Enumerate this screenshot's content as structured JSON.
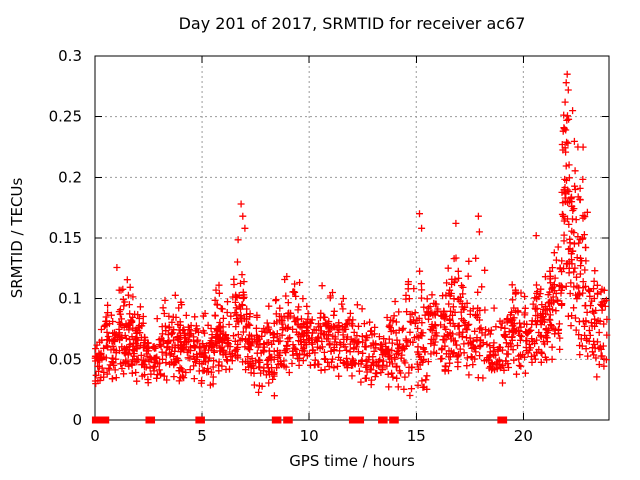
{
  "chart_data": {
    "type": "scatter",
    "title": "Day 201 of 2017, SRMTID for receiver ac67",
    "xlabel": "GPS time / hours",
    "ylabel": "SRMTID / TECUs",
    "series_name": "SRMTID",
    "xlim": [
      0,
      24
    ],
    "ylim": [
      0,
      0.3
    ],
    "xticks": [
      {
        "v": 0,
        "label": "0"
      },
      {
        "v": 5,
        "label": "5"
      },
      {
        "v": 10,
        "label": "10"
      },
      {
        "v": 15,
        "label": "15"
      },
      {
        "v": 20,
        "label": "20"
      }
    ],
    "yticks": [
      {
        "v": 0,
        "label": "0"
      },
      {
        "v": 0.05,
        "label": "0.05"
      },
      {
        "v": 0.1,
        "label": "0.1"
      },
      {
        "v": 0.15,
        "label": "0.15"
      },
      {
        "v": 0.2,
        "label": "0.2"
      },
      {
        "v": 0.25,
        "label": "0.25"
      },
      {
        "v": 0.3,
        "label": "0.3"
      }
    ],
    "grid": {
      "show": true,
      "style": "dashed",
      "color": "#9b9b9b"
    },
    "legend": "none",
    "marker": {
      "shape": "plus",
      "color": "#ff0000",
      "size": 7,
      "stroke_width": 1.3
    },
    "border_color": "#000000",
    "seed": 20172010,
    "bins_schema": [
      "x_start",
      "x_end",
      "count",
      "y_mean",
      "y_sd",
      "y_min",
      "y_max"
    ],
    "point_bins": [
      [
        0.0,
        0.3,
        25,
        0.048,
        0.012,
        0.028,
        0.075
      ],
      [
        0.3,
        1.0,
        55,
        0.06,
        0.018,
        0.03,
        0.105
      ],
      [
        1.0,
        1.8,
        75,
        0.072,
        0.02,
        0.035,
        0.126
      ],
      [
        1.8,
        2.4,
        55,
        0.06,
        0.015,
        0.03,
        0.1
      ],
      [
        2.4,
        3.1,
        45,
        0.05,
        0.012,
        0.028,
        0.085
      ],
      [
        3.1,
        4.0,
        70,
        0.062,
        0.016,
        0.032,
        0.105
      ],
      [
        4.0,
        4.8,
        60,
        0.06,
        0.016,
        0.03,
        0.105
      ],
      [
        4.8,
        5.6,
        55,
        0.055,
        0.014,
        0.028,
        0.09
      ],
      [
        5.6,
        6.4,
        70,
        0.068,
        0.018,
        0.035,
        0.115
      ],
      [
        6.4,
        7.1,
        65,
        0.082,
        0.03,
        0.04,
        0.18
      ],
      [
        7.1,
        7.8,
        55,
        0.06,
        0.02,
        0.02,
        0.125
      ],
      [
        7.8,
        8.6,
        60,
        0.058,
        0.018,
        0.015,
        0.105
      ],
      [
        8.6,
        9.6,
        75,
        0.07,
        0.02,
        0.035,
        0.13
      ],
      [
        9.6,
        10.6,
        70,
        0.065,
        0.016,
        0.035,
        0.105
      ],
      [
        10.6,
        11.6,
        70,
        0.068,
        0.018,
        0.035,
        0.12
      ],
      [
        11.6,
        12.6,
        60,
        0.058,
        0.015,
        0.03,
        0.095
      ],
      [
        12.6,
        13.6,
        60,
        0.055,
        0.015,
        0.022,
        0.092
      ],
      [
        13.6,
        14.5,
        60,
        0.06,
        0.016,
        0.025,
        0.1
      ],
      [
        14.5,
        15.5,
        70,
        0.07,
        0.028,
        0.02,
        0.17
      ],
      [
        15.5,
        16.4,
        65,
        0.07,
        0.018,
        0.035,
        0.12
      ],
      [
        16.4,
        17.1,
        60,
        0.08,
        0.026,
        0.04,
        0.165
      ],
      [
        17.1,
        18.2,
        70,
        0.072,
        0.024,
        0.03,
        0.17
      ],
      [
        18.2,
        19.3,
        65,
        0.058,
        0.016,
        0.025,
        0.1
      ],
      [
        19.3,
        20.3,
        70,
        0.068,
        0.018,
        0.033,
        0.115
      ],
      [
        20.3,
        21.2,
        70,
        0.075,
        0.02,
        0.04,
        0.14
      ],
      [
        21.2,
        21.8,
        55,
        0.09,
        0.025,
        0.05,
        0.16
      ],
      [
        21.8,
        22.1,
        40,
        0.19,
        0.05,
        0.09,
        0.285
      ],
      [
        22.1,
        22.45,
        45,
        0.15,
        0.05,
        0.07,
        0.26
      ],
      [
        22.45,
        23.0,
        55,
        0.115,
        0.04,
        0.05,
        0.225
      ],
      [
        23.0,
        23.9,
        60,
        0.075,
        0.025,
        0.025,
        0.15
      ]
    ],
    "extra_points": [
      [
        6.82,
        0.178
      ],
      [
        6.9,
        0.168
      ],
      [
        7.0,
        0.158
      ],
      [
        15.15,
        0.17
      ],
      [
        15.25,
        0.158
      ],
      [
        16.85,
        0.162
      ],
      [
        17.9,
        0.168
      ],
      [
        17.95,
        0.155
      ],
      [
        20.6,
        0.152
      ],
      [
        21.95,
        0.262
      ],
      [
        22.0,
        0.278
      ],
      [
        22.05,
        0.285
      ],
      [
        22.1,
        0.272
      ],
      [
        22.3,
        0.255
      ],
      [
        22.55,
        0.225
      ]
    ],
    "zero_clusters": [
      {
        "x0": 0.02,
        "x1": 0.5
      },
      {
        "x0": 2.52,
        "x1": 2.64
      },
      {
        "x0": 4.85,
        "x1": 4.97
      },
      {
        "x0": 8.42,
        "x1": 8.54
      },
      {
        "x0": 8.95,
        "x1": 9.07
      },
      {
        "x0": 12.02,
        "x1": 12.4
      },
      {
        "x0": 13.38,
        "x1": 13.5
      },
      {
        "x0": 13.9,
        "x1": 14.02
      },
      {
        "x0": 18.95,
        "x1": 19.08
      }
    ]
  }
}
